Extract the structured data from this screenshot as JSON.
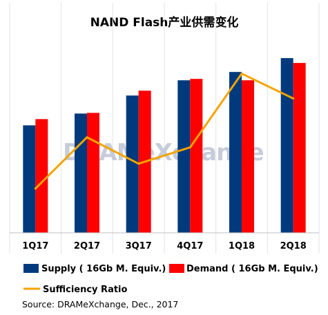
{
  "chart_data": {
    "type": "bar",
    "title": "NAND Flash产业供需变化",
    "categories": [
      "1Q17",
      "2Q17",
      "3Q17",
      "4Q17",
      "1Q18",
      "2Q18"
    ],
    "series": [
      {
        "name": "Supply ( 16Gb M. Equiv.)",
        "type": "bar",
        "color": "#003a7d",
        "values": [
          155,
          172,
          198,
          220,
          232,
          252
        ]
      },
      {
        "name": "Demand ( 16Gb M. Equiv.)",
        "type": "bar",
        "color": "#ff0000",
        "values": [
          164,
          173,
          205,
          222,
          220,
          245
        ]
      },
      {
        "name": "Sufficiency Ratio",
        "type": "line",
        "color": "#f5a300",
        "values": [
          57,
          123,
          89,
          110,
          205,
          173
        ]
      }
    ],
    "ylim": [
      0,
      280
    ],
    "ratio_range": [
      0,
      250
    ],
    "grid": "vertical",
    "legend": "bottom",
    "show_y_axis": false
  },
  "watermark": "DRAMeXchange",
  "source": "Source: DRAMeXchange, Dec., 2017",
  "colors": {
    "grid": "#e3e3e3",
    "axis": "#bfbfbf",
    "watermark": "#b4bccd"
  }
}
